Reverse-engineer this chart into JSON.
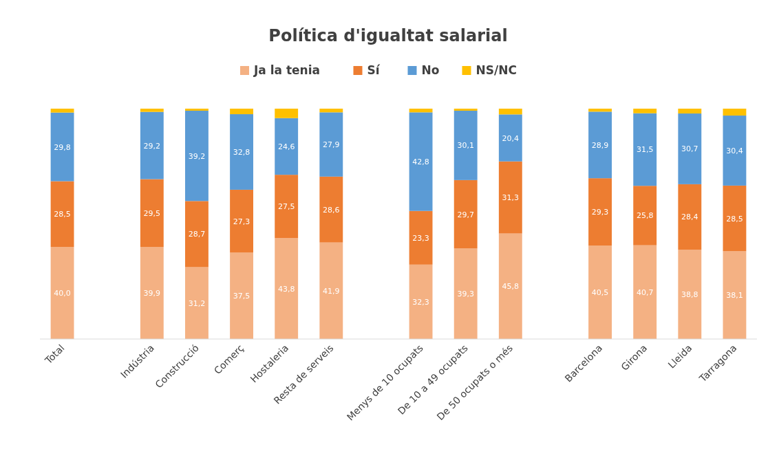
{
  "chart_data": {
    "type": "bar",
    "title": "Política d'igualtat salarial",
    "stacked": true,
    "legend": "top",
    "ylim": [
      0,
      100
    ],
    "tick_labels": "x",
    "categories": [
      "Total",
      null,
      "Indústria",
      "Construcció",
      "Comerç",
      "Hostaleria",
      "Resta de serveis",
      null,
      "Menys de 10 ocupats",
      "De 10 a 49 ocupats",
      "De 50 ocupats o més",
      null,
      "Barcelona",
      "Girona",
      "Lleida",
      "Tarragona"
    ],
    "series": [
      {
        "name": "Ja la tenia",
        "color": "#f4b183",
        "values": [
          40.0,
          null,
          39.9,
          31.2,
          37.5,
          43.8,
          41.9,
          null,
          32.3,
          39.3,
          45.8,
          null,
          40.5,
          40.7,
          38.8,
          38.1
        ],
        "value_labels": [
          "40,0",
          null,
          "39,9",
          "31,2",
          "37,5",
          "43,8",
          "41,9",
          null,
          "32,3",
          "39,3",
          "45,8",
          null,
          "40,5",
          "40,7",
          "38,8",
          "38,1"
        ]
      },
      {
        "name": "Sí",
        "color": "#ed7d31",
        "values": [
          28.5,
          null,
          29.5,
          28.7,
          27.3,
          27.5,
          28.6,
          null,
          23.3,
          29.7,
          31.3,
          null,
          29.3,
          25.8,
          28.4,
          28.5
        ],
        "value_labels": [
          "28,5",
          null,
          "29,5",
          "28,7",
          "27,3",
          "27,5",
          "28,6",
          null,
          "23,3",
          "29,7",
          "31,3",
          null,
          "29,3",
          "25,8",
          "28,4",
          "28,5"
        ]
      },
      {
        "name": "No",
        "color": "#5b9bd5",
        "values": [
          29.8,
          null,
          29.2,
          39.2,
          32.8,
          24.6,
          27.9,
          null,
          42.8,
          30.1,
          20.4,
          null,
          28.9,
          31.5,
          30.7,
          30.4
        ],
        "value_labels": [
          "29,8",
          null,
          "29,2",
          "39,2",
          "32,8",
          "24,6",
          "27,9",
          null,
          "42,8",
          "30,1",
          "20,4",
          null,
          "28,9",
          "31,5",
          "30,7",
          "30,4"
        ]
      },
      {
        "name": "NS/NC",
        "color": "#ffc000",
        "values": [
          1.7,
          null,
          1.4,
          0.9,
          2.4,
          4.1,
          1.6,
          null,
          1.6,
          0.9,
          2.5,
          null,
          1.3,
          2.0,
          2.1,
          3.0
        ]
      }
    ]
  }
}
